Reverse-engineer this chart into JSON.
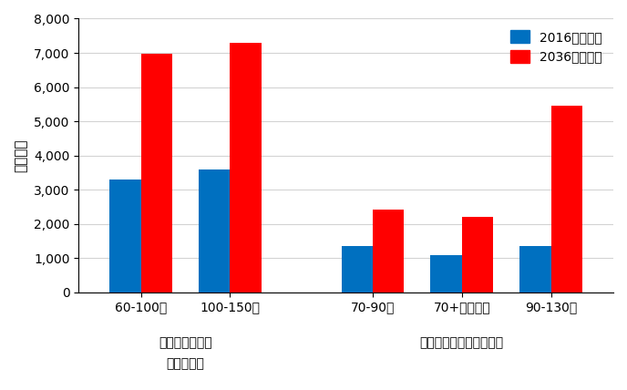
{
  "categories": [
    "60-100席",
    "100-150席",
    "70-90席",
    "70+プロップ",
    "90-130席"
  ],
  "values_2016": [
    3300,
    3600,
    1350,
    1075,
    1350
  ],
  "values_2036": [
    6975,
    7300,
    2425,
    2200,
    5450
  ],
  "color_2016": "#0070C0",
  "color_2036": "#FF0000",
  "ylabel": "運航機数",
  "ylim": [
    0,
    8000
  ],
  "yticks": [
    0,
    1000,
    2000,
    3000,
    4000,
    5000,
    6000,
    7000,
    8000
  ],
  "legend_2016": "2016（実数）",
  "legend_2036": "2036（予測）",
  "group1_label_line1": "ボンバルディア",
  "group1_label_line2": "による予測",
  "group2_label": "エンブラエルによる予測",
  "bar_width": 0.35,
  "figsize": [
    6.88,
    4.28
  ],
  "dpi": 100,
  "group_positions": [
    0,
    1,
    2.6,
    3.6,
    4.6
  ]
}
